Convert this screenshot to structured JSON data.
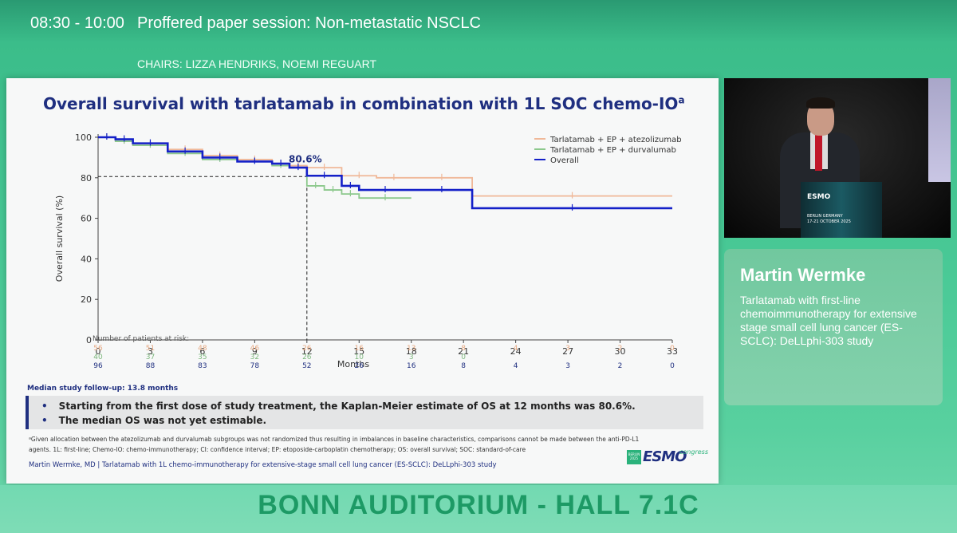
{
  "header": {
    "time": "08:30 - 10:00",
    "session_title": "Proffered paper session: Non-metastatic NSCLC",
    "chairs": "CHAIRS: LIZZA HENDRIKS, NOEMI REGUART"
  },
  "slide": {
    "title": "Overall survival with tarlatamab in combination with 1L SOC chemo-IO",
    "title_sup": "a",
    "risk_header": "Number of patients at risk:",
    "followup": "Median study follow-up: 13.8 months",
    "bullets": [
      "Starting from the first dose of study treatment, the Kaplan-Meier estimate of OS at 12 months was 80.6%.",
      "The median OS was not yet estimable."
    ],
    "footnote_line1": "ᵃGiven allocation between the atezolizumab and durvalumab subgroups was not randomized thus resulting in imbalances in baseline characteristics, comparisons cannot be made between the anti-PD-L1",
    "footnote_line2": "agents. 1L: first-line; Chemo-IO: chemo-immunotherapy; CI: confidence interval; EP: etoposide-carboplatin chemotherapy; OS: overall survival; SOC: standard-of-care",
    "footer": "Martin Wermke, MD | Tarlatamab with 1L chemo-immunotherapy for extensive-stage small cell lung cancer (ES-SCLC): DeLLphi-303 study",
    "esmo_badge": "BERLIN 2025",
    "esmo_word": "ESMO",
    "esmo_congress": "congress"
  },
  "chart_data": {
    "type": "line",
    "title": "Overall survival with tarlatamab in combination with 1L SOC chemo-IO",
    "xlabel": "Months",
    "ylabel": "Overall survival (%)",
    "xlim": [
      0,
      33
    ],
    "ylim": [
      0,
      100
    ],
    "xticks": [
      0,
      3,
      6,
      9,
      12,
      15,
      18,
      21,
      24,
      27,
      30,
      33
    ],
    "yticks": [
      0,
      20,
      40,
      60,
      80,
      100
    ],
    "annotation": {
      "text": "80.6%",
      "x": 12,
      "y": 80.6
    },
    "legend_position": "top-right",
    "series": [
      {
        "name": "Tarlatamab + EP + atezolizumab",
        "color": "#f0b898",
        "x": [
          0,
          1,
          2,
          4,
          6,
          8,
          10,
          11,
          12,
          14,
          16,
          18,
          21.5,
          33
        ],
        "y": [
          100,
          98,
          96,
          94,
          91,
          89,
          87,
          86,
          85,
          81,
          80,
          80,
          71,
          71
        ]
      },
      {
        "name": "Tarlatamab + EP + durvalumab",
        "color": "#8cc88c",
        "x": [
          0,
          1,
          2,
          4,
          6,
          8,
          10,
          11,
          12,
          13,
          14,
          15,
          18
        ],
        "y": [
          100,
          98,
          96,
          92,
          89,
          88,
          86,
          85,
          76,
          74,
          72,
          70,
          70
        ]
      },
      {
        "name": "Overall",
        "color": "#1420c8",
        "x": [
          0,
          1,
          2,
          4,
          6,
          8,
          10,
          11,
          12,
          14,
          15,
          18,
          21.5,
          33
        ],
        "y": [
          100,
          99,
          97,
          93,
          90,
          88,
          87,
          85,
          81,
          76,
          74,
          74,
          65,
          65
        ]
      }
    ],
    "risk_table": {
      "x": [
        0,
        3,
        6,
        9,
        12,
        15,
        18,
        21,
        24,
        27,
        30,
        33
      ],
      "rows": [
        {
          "name": "Tarlatamab + EP + atezolizumab",
          "color": "#e7a982",
          "values": [
            "56",
            "51",
            "48",
            "46",
            "26",
            "16",
            "13",
            "8",
            "4",
            "3",
            "2",
            "0"
          ]
        },
        {
          "name": "Tarlatamab + EP + durvalumab",
          "color": "#7fb87f",
          "values": [
            "40",
            "37",
            "35",
            "32",
            "26",
            "10",
            "3",
            "0",
            "",
            "",
            "",
            ""
          ]
        },
        {
          "name": "Overall",
          "color": "#1f2f80",
          "values": [
            "96",
            "88",
            "83",
            "78",
            "52",
            "26",
            "16",
            "8",
            "4",
            "3",
            "2",
            "0"
          ]
        }
      ]
    }
  },
  "video": {
    "podium_brand": "ESMO",
    "podium_city_1": "BERLIN GERMANY",
    "podium_city_2": "17-21 OCTOBER 2025"
  },
  "speaker": {
    "name": "Martin Wermke",
    "talk": "Tarlatamab with first-line chemoimmunotherapy for extensive stage small cell lung cancer (ES-SCLC): DeLLphi-303 study"
  },
  "room": "BONN AUDITORIUM - HALL 7.1C"
}
